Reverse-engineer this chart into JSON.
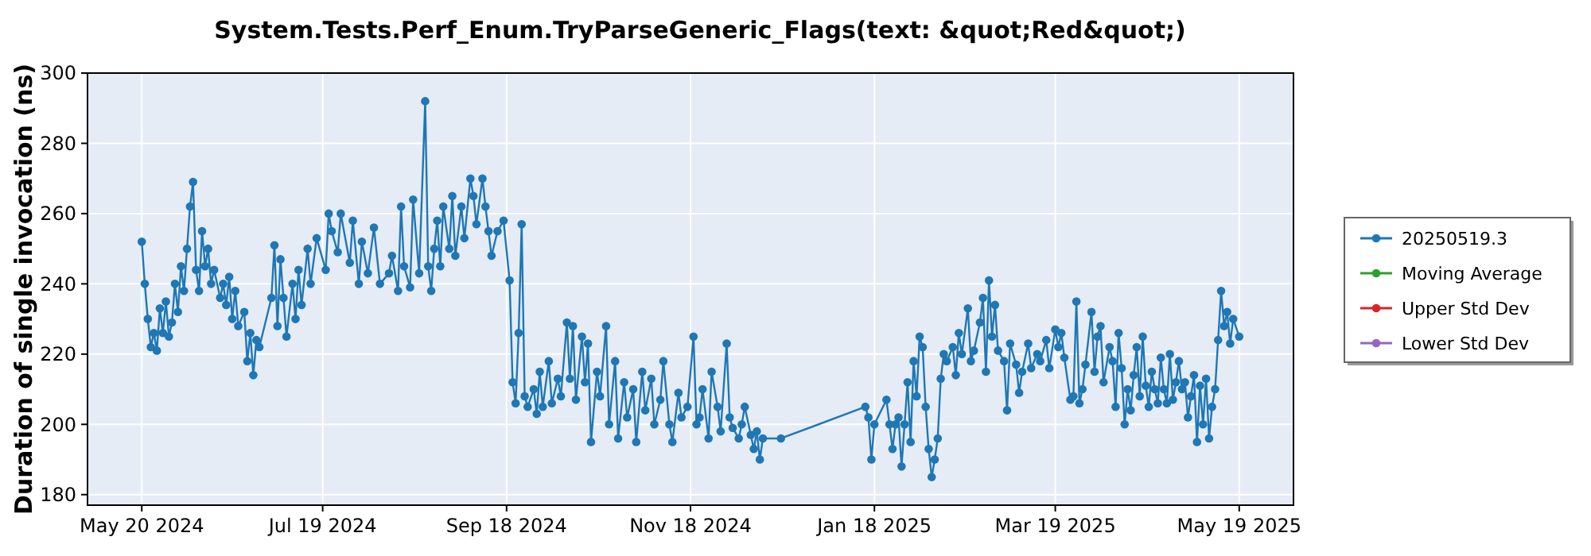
{
  "chart_data": {
    "type": "line",
    "title": "System.Tests.Perf_Enum.TryParseGeneric_Flags(text: &quot;Red&quot;)",
    "ylabel": "Duration of single invocation (ns)",
    "xlim": [
      "2024-05-02",
      "2025-06-06"
    ],
    "xticks": [
      {
        "value": "2024-05-20",
        "label": "May 20 2024"
      },
      {
        "value": "2024-07-19",
        "label": "Jul 19 2024"
      },
      {
        "value": "2024-09-18",
        "label": "Sep 18 2024"
      },
      {
        "value": "2024-11-18",
        "label": "Nov 18 2024"
      },
      {
        "value": "2025-01-18",
        "label": "Jan 18 2025"
      },
      {
        "value": "2025-03-19",
        "label": "Mar 19 2025"
      },
      {
        "value": "2025-05-19",
        "label": "May 19 2025"
      }
    ],
    "ylim": [
      177,
      300
    ],
    "yticks": [
      180,
      200,
      220,
      240,
      260,
      280,
      300
    ],
    "grid": true,
    "legend": "right",
    "marker": "circle",
    "line_style": "solid",
    "series": [
      {
        "name": "20250519.3",
        "color": "#1f77b4",
        "x": [
          "2024-05-20",
          "2024-05-21",
          "2024-05-22",
          "2024-05-23",
          "2024-05-24",
          "2024-05-25",
          "2024-05-26",
          "2024-05-27",
          "2024-05-28",
          "2024-05-29",
          "2024-05-30",
          "2024-05-31",
          "2024-06-01",
          "2024-06-02",
          "2024-06-03",
          "2024-06-04",
          "2024-06-05",
          "2024-06-06",
          "2024-06-07",
          "2024-06-08",
          "2024-06-09",
          "2024-06-10",
          "2024-06-11",
          "2024-06-12",
          "2024-06-13",
          "2024-06-15",
          "2024-06-16",
          "2024-06-17",
          "2024-06-18",
          "2024-06-19",
          "2024-06-20",
          "2024-06-21",
          "2024-06-23",
          "2024-06-24",
          "2024-06-25",
          "2024-06-26",
          "2024-06-27",
          "2024-06-28",
          "2024-07-02",
          "2024-07-03",
          "2024-07-04",
          "2024-07-05",
          "2024-07-06",
          "2024-07-07",
          "2024-07-09",
          "2024-07-10",
          "2024-07-11",
          "2024-07-12",
          "2024-07-14",
          "2024-07-15",
          "2024-07-17",
          "2024-07-20",
          "2024-07-21",
          "2024-07-22",
          "2024-07-24",
          "2024-07-25",
          "2024-07-28",
          "2024-07-29",
          "2024-07-31",
          "2024-08-01",
          "2024-08-03",
          "2024-08-05",
          "2024-08-07",
          "2024-08-10",
          "2024-08-11",
          "2024-08-13",
          "2024-08-14",
          "2024-08-15",
          "2024-08-17",
          "2024-08-18",
          "2024-08-20",
          "2024-08-22",
          "2024-08-23",
          "2024-08-24",
          "2024-08-25",
          "2024-08-26",
          "2024-08-27",
          "2024-08-28",
          "2024-08-30",
          "2024-08-31",
          "2024-09-01",
          "2024-09-03",
          "2024-09-04",
          "2024-09-06",
          "2024-09-07",
          "2024-09-08",
          "2024-09-10",
          "2024-09-11",
          "2024-09-12",
          "2024-09-13",
          "2024-09-15",
          "2024-09-17",
          "2024-09-19",
          "2024-09-20",
          "2024-09-21",
          "2024-09-22",
          "2024-09-23",
          "2024-09-24",
          "2024-09-25",
          "2024-09-27",
          "2024-09-28",
          "2024-09-29",
          "2024-09-30",
          "2024-10-02",
          "2024-10-03",
          "2024-10-05",
          "2024-10-06",
          "2024-10-08",
          "2024-10-09",
          "2024-10-10",
          "2024-10-11",
          "2024-10-13",
          "2024-10-14",
          "2024-10-15",
          "2024-10-16",
          "2024-10-18",
          "2024-10-19",
          "2024-10-21",
          "2024-10-22",
          "2024-10-24",
          "2024-10-25",
          "2024-10-27",
          "2024-10-28",
          "2024-10-30",
          "2024-10-31",
          "2024-11-02",
          "2024-11-03",
          "2024-11-05",
          "2024-11-06",
          "2024-11-08",
          "2024-11-09",
          "2024-11-11",
          "2024-11-12",
          "2024-11-14",
          "2024-11-15",
          "2024-11-17",
          "2024-11-19",
          "2024-11-20",
          "2024-11-21",
          "2024-11-22",
          "2024-11-24",
          "2024-11-25",
          "2024-11-27",
          "2024-11-28",
          "2024-11-30",
          "2024-12-01",
          "2024-12-02",
          "2024-12-04",
          "2024-12-05",
          "2024-12-06",
          "2024-12-08",
          "2024-12-09",
          "2024-12-10",
          "2024-12-11",
          "2024-12-12",
          "2024-12-18",
          "2025-01-15",
          "2025-01-16",
          "2025-01-17",
          "2025-01-18",
          "2025-01-22",
          "2025-01-23",
          "2025-01-24",
          "2025-01-25",
          "2025-01-26",
          "2025-01-27",
          "2025-01-28",
          "2025-01-29",
          "2025-01-30",
          "2025-01-31",
          "2025-02-01",
          "2025-02-02",
          "2025-02-03",
          "2025-02-04",
          "2025-02-05",
          "2025-02-06",
          "2025-02-07",
          "2025-02-08",
          "2025-02-09",
          "2025-02-10",
          "2025-02-11",
          "2025-02-13",
          "2025-02-14",
          "2025-02-15",
          "2025-02-16",
          "2025-02-18",
          "2025-02-19",
          "2025-02-20",
          "2025-02-22",
          "2025-02-23",
          "2025-02-24",
          "2025-02-25",
          "2025-02-26",
          "2025-02-27",
          "2025-02-28",
          "2025-03-02",
          "2025-03-03",
          "2025-03-04",
          "2025-03-06",
          "2025-03-07",
          "2025-03-08",
          "2025-03-10",
          "2025-03-11",
          "2025-03-13",
          "2025-03-14",
          "2025-03-16",
          "2025-03-17",
          "2025-03-19",
          "2025-03-20",
          "2025-03-21",
          "2025-03-22",
          "2025-03-24",
          "2025-03-25",
          "2025-03-26",
          "2025-03-27",
          "2025-03-28",
          "2025-03-29",
          "2025-03-31",
          "2025-04-01",
          "2025-04-02",
          "2025-04-03",
          "2025-04-04",
          "2025-04-06",
          "2025-04-07",
          "2025-04-08",
          "2025-04-09",
          "2025-04-10",
          "2025-04-11",
          "2025-04-12",
          "2025-04-13",
          "2025-04-14",
          "2025-04-15",
          "2025-04-16",
          "2025-04-17",
          "2025-04-18",
          "2025-04-19",
          "2025-04-20",
          "2025-04-21",
          "2025-04-22",
          "2025-04-23",
          "2025-04-24",
          "2025-04-25",
          "2025-04-26",
          "2025-04-27",
          "2025-04-28",
          "2025-04-29",
          "2025-04-30",
          "2025-05-01",
          "2025-05-02",
          "2025-05-03",
          "2025-05-04",
          "2025-05-05",
          "2025-05-06",
          "2025-05-07",
          "2025-05-08",
          "2025-05-09",
          "2025-05-10",
          "2025-05-11",
          "2025-05-12",
          "2025-05-13",
          "2025-05-14",
          "2025-05-15",
          "2025-05-16",
          "2025-05-17",
          "2025-05-19"
        ],
        "values": [
          252,
          240,
          230,
          222,
          226,
          221,
          233,
          226,
          235,
          225,
          229,
          240,
          232,
          245,
          238,
          250,
          262,
          269,
          244,
          238,
          255,
          245,
          250,
          240,
          244,
          236,
          240,
          234,
          242,
          230,
          238,
          228,
          232,
          218,
          226,
          214,
          224,
          222,
          236,
          251,
          228,
          247,
          236,
          225,
          240,
          230,
          244,
          234,
          250,
          240,
          253,
          244,
          260,
          255,
          249,
          260,
          246,
          258,
          240,
          252,
          243,
          256,
          240,
          243,
          248,
          238,
          262,
          245,
          239,
          264,
          243,
          292,
          245,
          238,
          250,
          258,
          245,
          262,
          250,
          265,
          248,
          262,
          253,
          270,
          265,
          257,
          270,
          262,
          255,
          248,
          255,
          258,
          241,
          212,
          206,
          226,
          257,
          208,
          205,
          210,
          203,
          215,
          205,
          218,
          206,
          213,
          208,
          229,
          213,
          228,
          207,
          225,
          212,
          223,
          195,
          215,
          208,
          228,
          200,
          218,
          196,
          212,
          202,
          210,
          195,
          215,
          204,
          213,
          200,
          207,
          218,
          200,
          195,
          209,
          202,
          205,
          225,
          200,
          202,
          210,
          196,
          215,
          205,
          198,
          223,
          202,
          199,
          196,
          200,
          205,
          197,
          193,
          198,
          190,
          196,
          196,
          205,
          202,
          190,
          200,
          207,
          200,
          193,
          200,
          202,
          188,
          200,
          212,
          195,
          218,
          208,
          225,
          222,
          205,
          193,
          185,
          190,
          196,
          213,
          220,
          218,
          222,
          214,
          226,
          220,
          233,
          218,
          221,
          229,
          236,
          215,
          241,
          225,
          234,
          221,
          218,
          204,
          223,
          217,
          209,
          215,
          223,
          216,
          220,
          218,
          224,
          216,
          227,
          222,
          226,
          219,
          207,
          208,
          235,
          206,
          210,
          217,
          232,
          215,
          225,
          228,
          212,
          222,
          218,
          205,
          226,
          216,
          200,
          210,
          204,
          214,
          222,
          208,
          225,
          211,
          205,
          215,
          210,
          206,
          219,
          210,
          206,
          220,
          207,
          212,
          218,
          210,
          212,
          202,
          208,
          214,
          195,
          211,
          200,
          213,
          196,
          205,
          210,
          224,
          238,
          228,
          232,
          223,
          230,
          225
        ]
      },
      {
        "name": "Moving Average",
        "color": "#2ca02c"
      },
      {
        "name": "Upper Std Dev",
        "color": "#d62728"
      },
      {
        "name": "Lower Std Dev",
        "color": "#9467bd"
      }
    ]
  }
}
